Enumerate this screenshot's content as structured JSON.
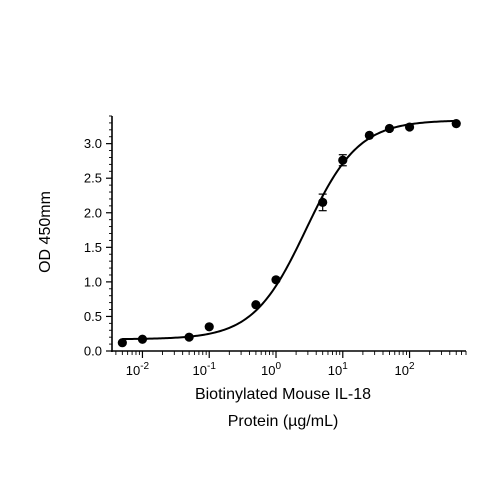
{
  "chart_data": {
    "type": "scatter",
    "title": "",
    "xlabel_line1": "Biotinylated Mouse IL-18",
    "xlabel_line2": "Protein (µg/mL)",
    "ylabel": "OD 450mm",
    "xscale": "log",
    "xlim": [
      0.0035,
      700
    ],
    "ylim": [
      0,
      3.4
    ],
    "x_ticks": [
      0.01,
      0.1,
      1,
      10,
      100
    ],
    "x_tick_labels": [
      {
        "base": "10",
        "exp": "-2"
      },
      {
        "base": "10",
        "exp": "-1"
      },
      {
        "base": "10",
        "exp": "0"
      },
      {
        "base": "10",
        "exp": "1"
      },
      {
        "base": "10",
        "exp": "2"
      }
    ],
    "y_ticks": [
      0.0,
      0.5,
      1.0,
      1.5,
      2.0,
      2.5,
      3.0
    ],
    "y_tick_labels": [
      "0.0",
      "0.5",
      "1.0",
      "1.5",
      "2.0",
      "2.5",
      "3.0"
    ],
    "grid": false,
    "series": [
      {
        "points": [
          {
            "x": 0.005,
            "y": 0.12,
            "err": 0.0
          },
          {
            "x": 0.01,
            "y": 0.17,
            "err": 0.0
          },
          {
            "x": 0.05,
            "y": 0.2,
            "err": 0.0
          },
          {
            "x": 0.1,
            "y": 0.35,
            "err": 0.0
          },
          {
            "x": 0.5,
            "y": 0.67,
            "err": 0.0
          },
          {
            "x": 1,
            "y": 1.03,
            "err": 0.0
          },
          {
            "x": 5,
            "y": 2.15,
            "err": 0.12
          },
          {
            "x": 10,
            "y": 2.76,
            "err": 0.08
          },
          {
            "x": 25,
            "y": 3.12,
            "err": 0.0
          },
          {
            "x": 50,
            "y": 3.22,
            "err": 0.0
          },
          {
            "x": 100,
            "y": 3.24,
            "err": 0.0
          },
          {
            "x": 500,
            "y": 3.29,
            "err": 0.0
          }
        ],
        "fit": {
          "model": "4PL",
          "bottom": 0.17,
          "top": 3.34,
          "ec50": 2.8,
          "hill": 1.1
        }
      }
    ]
  }
}
